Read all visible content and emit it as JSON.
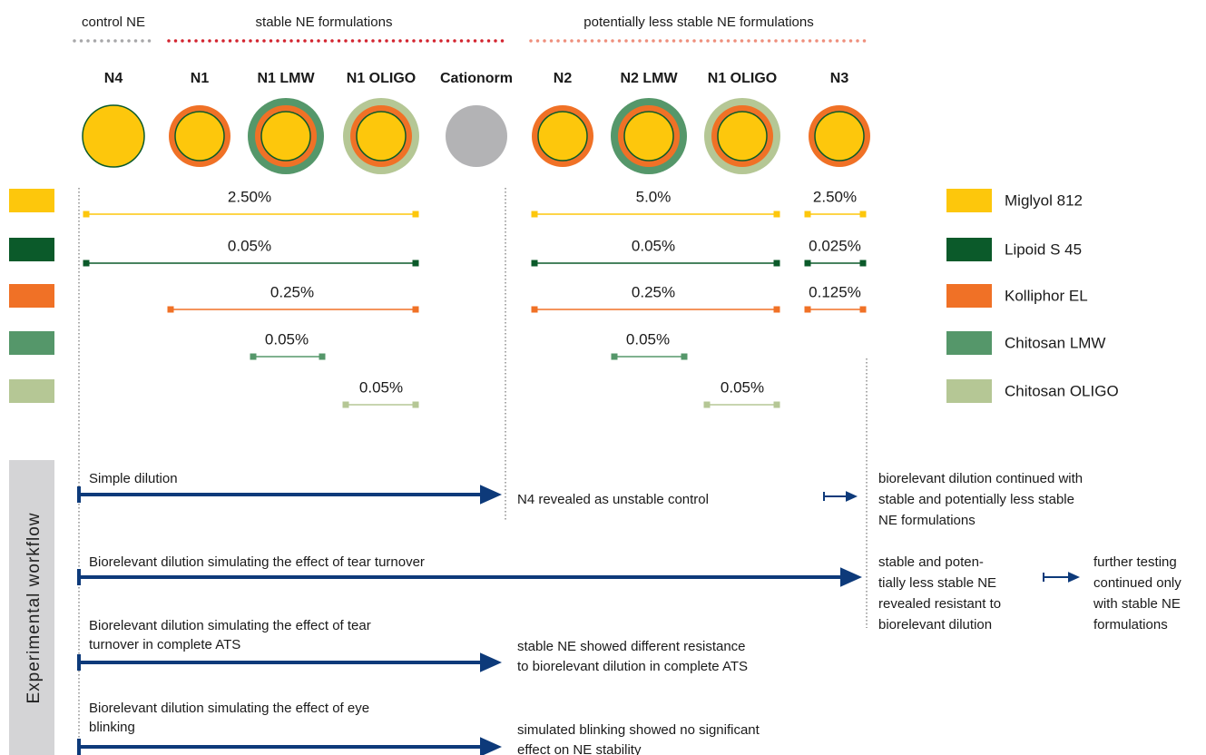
{
  "groups": [
    "control NE",
    "stable NE formulations",
    "potentially less stable NE formulations"
  ],
  "formulations": [
    "N4",
    "N1",
    "N1 LMW",
    "N1 OLIGO",
    "Cationorm",
    "N2",
    "N2 LMW",
    "N1 OLIGO",
    "N3"
  ],
  "components": [
    {
      "name": "Miglyol 812",
      "concentrations": [
        "2.50%",
        "5.0%",
        "2.50%"
      ]
    },
    {
      "name": "Lipoid S 45",
      "concentrations": [
        "0.05%",
        "0.05%",
        "0.025%"
      ]
    },
    {
      "name": "Kolliphor EL",
      "concentrations": [
        "0.25%",
        "0.25%",
        "0.125%"
      ]
    },
    {
      "name": "Chitosan LMW",
      "concentrations": [
        "0.05%",
        "0.05%"
      ]
    },
    {
      "name": "Chitosan OLIGO",
      "concentrations": [
        "0.05%",
        "0.05%"
      ]
    }
  ],
  "workflow": {
    "label": "Experimental workflow",
    "steps": [
      {
        "description": [
          "Simple dilution"
        ],
        "outcomes": [
          [
            "N4 revealed as unstable control"
          ],
          [
            "biorelevant dilution continued with",
            "stable and potentially less stable",
            "NE formulations"
          ]
        ]
      },
      {
        "description": [
          "Biorelevant dilution simulating the effect of tear turnover"
        ],
        "outcomes": [
          [
            "stable and poten-",
            "tially less stable NE",
            "revealed resistant to",
            "biorelevant dilution"
          ],
          [
            "further testing",
            "continued only",
            "with stable NE",
            "formulations"
          ]
        ]
      },
      {
        "description": [
          "Biorelevant dilution simulating the effect of tear",
          "turnover in complete ATS"
        ],
        "outcomes": [
          [
            "stable NE showed different resistance",
            "to biorelevant dilution in complete ATS"
          ]
        ]
      },
      {
        "description": [
          "Biorelevant dilution simulating the effect of eye",
          "blinking"
        ],
        "outcomes": [
          [
            "simulated blinking showed no significant",
            "effect on NE stability"
          ]
        ]
      }
    ]
  }
}
